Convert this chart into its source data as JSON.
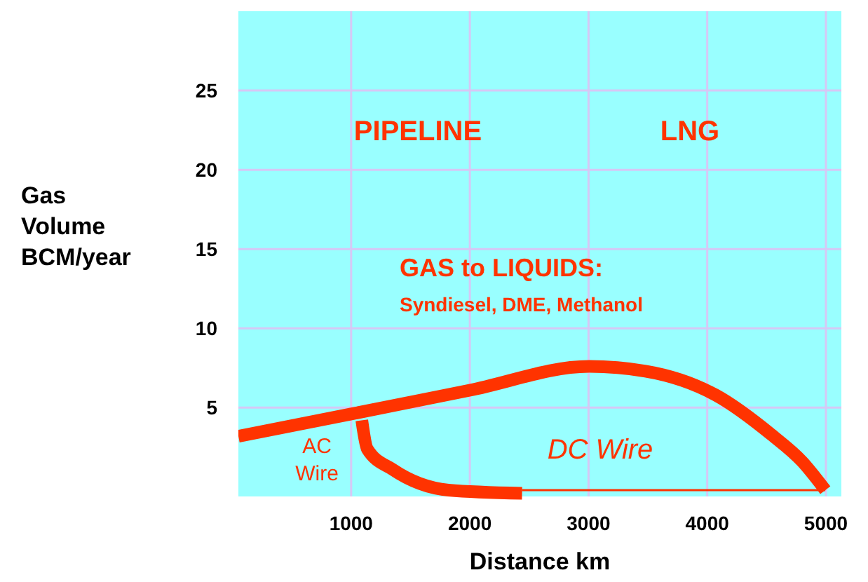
{
  "chart_data": {
    "type": "line",
    "xlabel": "Distance km",
    "ylabel": "Gas\nVolume\nBCM/year",
    "xlim": [
      50,
      5130
    ],
    "xticks": [
      1000,
      2000,
      3000,
      4000,
      5000
    ],
    "ylim": [
      -0.6,
      30
    ],
    "yticks": [
      5,
      10,
      15,
      20,
      25
    ],
    "grid": true,
    "series": [
      {
        "color": "#ff3300",
        "x": [
          50,
          1000,
          2000,
          3006,
          3480,
          4070,
          4540,
          4800,
          4995
        ],
        "values": [
          3.2,
          4.6,
          6.1,
          7.6,
          7.3,
          5.8,
          3.3,
          1.6,
          -0.2
        ]
      },
      {
        "color": "#ff3300",
        "x": [
          1090,
          1136,
          1350,
          1820,
          2440
        ],
        "values": [
          4.2,
          2.4,
          1.1,
          -0.2,
          -0.4
        ]
      },
      {
        "color": "#ff3300",
        "x": [
          2440,
          4995
        ],
        "values": [
          -0.2,
          -0.2
        ]
      }
    ],
    "annotations": [
      "PIPELINE",
      "LNG",
      "GAS to LIQUIDS:",
      "Syndiesel, DME, Methanol",
      "AC\nWire",
      "DC Wire"
    ]
  }
}
